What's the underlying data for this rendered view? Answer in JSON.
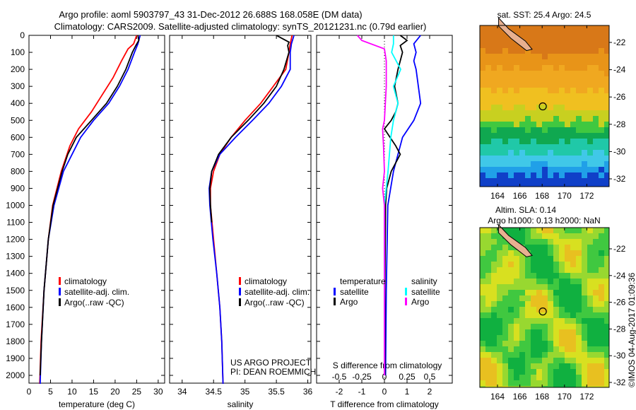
{
  "title_line1": "Argo profile: aoml 5903797_43 31-Dec-2012 26.688S 168.058E (DM data)",
  "title_line2": "Climatology: CARS2009. Satellite-adjusted climatology: synTS_20121231.nc (0.79d earlier)",
  "depth_ticks": [
    0,
    100,
    200,
    300,
    400,
    500,
    600,
    700,
    800,
    900,
    1000,
    1100,
    1200,
    1300,
    1400,
    1500,
    1600,
    1700,
    1800,
    1900,
    2000
  ],
  "colors": {
    "climatology": "#ff0000",
    "satellite": "#0000ff",
    "argo": "#000000",
    "sal_sat": "#00ffff",
    "sal_argo": "#ff00ff"
  },
  "chart_data": [
    {
      "type": "line",
      "xlabel": "temperature (deg C)",
      "xticks": [
        0,
        5,
        10,
        15,
        20,
        25,
        30
      ],
      "xlim": [
        0,
        31.5
      ],
      "ylim": [
        2050,
        0
      ],
      "legend": [
        "climatology",
        "satellite-adj. clim.",
        "Argo(..raw -QC)"
      ],
      "series": [
        {
          "name": "climatology",
          "color": "#ff0000",
          "depth": [
            0,
            50,
            80,
            150,
            250,
            350,
            450,
            550,
            650,
            800,
            1000,
            1200,
            1500,
            1800,
            2050
          ],
          "values": [
            25,
            24.3,
            23,
            21.5,
            19.5,
            17,
            14.5,
            11.5,
            9.5,
            7.5,
            5.5,
            4.5,
            3.5,
            2.8,
            2.5
          ]
        },
        {
          "name": "satellite-adj. clim.",
          "color": "#0000ff",
          "depth": [
            0,
            50,
            100,
            200,
            300,
            400,
            500,
            600,
            700,
            800,
            1000,
            1200,
            1500,
            1800,
            2050
          ],
          "values": [
            25.8,
            25.3,
            24.5,
            23,
            21,
            18.5,
            15,
            12,
            10,
            8,
            5.8,
            4.5,
            3.5,
            2.9,
            2.6
          ]
        },
        {
          "name": "Argo(..raw -QC)",
          "color": "#000000",
          "depth": [
            0,
            30,
            60,
            100,
            200,
            300,
            400,
            500,
            600,
            700,
            800,
            1000,
            1200,
            1500,
            1800,
            2000
          ],
          "values": [
            25.3,
            25.5,
            24.8,
            24,
            22.5,
            20.5,
            18,
            14.5,
            11,
            9,
            7.7,
            5.6,
            4.5,
            3.5,
            2.9,
            2.6
          ]
        }
      ]
    },
    {
      "type": "line",
      "xlabel": "salinity",
      "xticks": [
        34,
        34.5,
        35,
        35.5,
        36
      ],
      "xlim": [
        33.8,
        36.05
      ],
      "ylim": [
        2050,
        0
      ],
      "legend": [
        "climatology",
        "satellite-adj. clim.",
        "Argo(..raw -QC)"
      ],
      "annotation": [
        "US ARGO PROJECT",
        "PI: DEAN ROEMMICH"
      ],
      "series": [
        {
          "name": "climatology",
          "color": "#ff0000",
          "depth": [
            0,
            50,
            100,
            200,
            300,
            400,
            500,
            600,
            700,
            800,
            900,
            1000,
            1200,
            1400,
            1600,
            1800,
            2050
          ],
          "values": [
            35.75,
            35.72,
            35.7,
            35.65,
            35.45,
            35.25,
            35.0,
            34.78,
            34.6,
            34.5,
            34.45,
            34.45,
            34.5,
            34.55,
            34.6,
            34.63,
            34.65
          ]
        },
        {
          "name": "satellite-adj. clim.",
          "color": "#0000ff",
          "depth": [
            0,
            50,
            100,
            200,
            300,
            400,
            500,
            600,
            700,
            800,
            900,
            1000,
            1200,
            1400,
            1600,
            1800,
            2050
          ],
          "values": [
            35.78,
            35.74,
            35.72,
            35.72,
            35.58,
            35.38,
            35.12,
            34.85,
            34.6,
            34.47,
            34.43,
            34.44,
            34.49,
            34.55,
            34.6,
            34.63,
            34.65
          ]
        },
        {
          "name": "Argo(..raw -QC)",
          "color": "#000000",
          "depth": [
            0,
            20,
            40,
            60,
            100,
            200,
            300,
            400,
            500,
            600,
            700,
            800,
            900,
            1000,
            1100
          ],
          "values": [
            35.5,
            35.6,
            35.7,
            35.68,
            35.7,
            35.62,
            35.5,
            35.3,
            35.05,
            34.78,
            34.58,
            34.47,
            34.44,
            34.45,
            34.47
          ]
        }
      ]
    },
    {
      "type": "line",
      "xlabel": "T difference from climatology",
      "xticks": [
        -2,
        -1,
        0,
        1,
        2
      ],
      "xlim": [
        -3,
        3
      ],
      "xlabel2": "S difference from climatology",
      "xticks2": [
        "-0.5",
        "-0.25",
        "0",
        "0.25",
        "0.5"
      ],
      "xlim2": [
        -0.75,
        0.75
      ],
      "ylim": [
        2050,
        0
      ],
      "legend_headers": [
        "temperature",
        "salinity"
      ],
      "legend": [
        "satellite",
        "Argo",
        "satellite",
        "Argo"
      ],
      "series": [
        {
          "name": "temperature satellite",
          "color": "#0000ff",
          "depth": [
            0,
            50,
            100,
            150,
            200,
            300,
            400,
            500,
            600,
            700,
            800,
            1000,
            1500,
            2000
          ],
          "values": [
            1.6,
            1.3,
            1.4,
            1.3,
            1.4,
            1.5,
            1.6,
            1.3,
            0.8,
            0.6,
            0.4,
            0.15,
            0.08,
            0.05
          ]
        },
        {
          "name": "temperature Argo",
          "color": "#000000",
          "depth": [
            0,
            30,
            60,
            100,
            200,
            300,
            400,
            450,
            500,
            550,
            650,
            700,
            800,
            900,
            1000,
            1500,
            2000
          ],
          "values": [
            0.7,
            1.0,
            0.7,
            0.8,
            0.6,
            0.45,
            0.6,
            0.5,
            0.3,
            0,
            0.5,
            0.7,
            0.3,
            0.1,
            0.05,
            0.02,
            0.02
          ]
        },
        {
          "name": "salinity satellite",
          "color": "#00ffff",
          "depth": [
            0,
            50,
            100,
            200,
            300,
            400,
            500,
            600,
            800,
            1000,
            1500,
            2000
          ],
          "values": [
            0.1,
            0.1,
            0.08,
            0.18,
            0.1,
            0.15,
            0.1,
            0.07,
            0.04,
            0,
            0,
            0
          ]
        },
        {
          "name": "salinity Argo",
          "color": "#ff00ff",
          "depth": [
            0,
            30,
            80,
            150,
            300,
            500,
            550,
            650,
            800,
            900,
            1000,
            1500,
            2000
          ],
          "values": [
            -0.3,
            -0.25,
            0,
            0.02,
            0.02,
            0,
            -0.02,
            -0.01,
            0,
            -0.02,
            0,
            0,
            0
          ]
        }
      ]
    }
  ],
  "map_sst": {
    "title": "sat. SST: 25.4  Argo: 24.5",
    "lon_ticks": [
      164,
      166,
      168,
      170,
      172
    ],
    "lat_ticks": [
      -22,
      -24,
      -26,
      -28,
      -30,
      -32
    ],
    "argo_lon": 168.058,
    "argo_lat": -26.688
  },
  "map_sla": {
    "title1": "Altim. SLA: 0.14",
    "title2": "Argo h1000: 0.13 h2000: NaN",
    "lon_ticks": [
      164,
      166,
      168,
      170,
      172
    ],
    "lat_ticks": [
      -22,
      -24,
      -26,
      -28,
      -30,
      -32
    ],
    "argo_lon": 168.058,
    "argo_lat": -26.688
  },
  "stamp": "©IMOS 04-Aug-2017 01:09:36"
}
